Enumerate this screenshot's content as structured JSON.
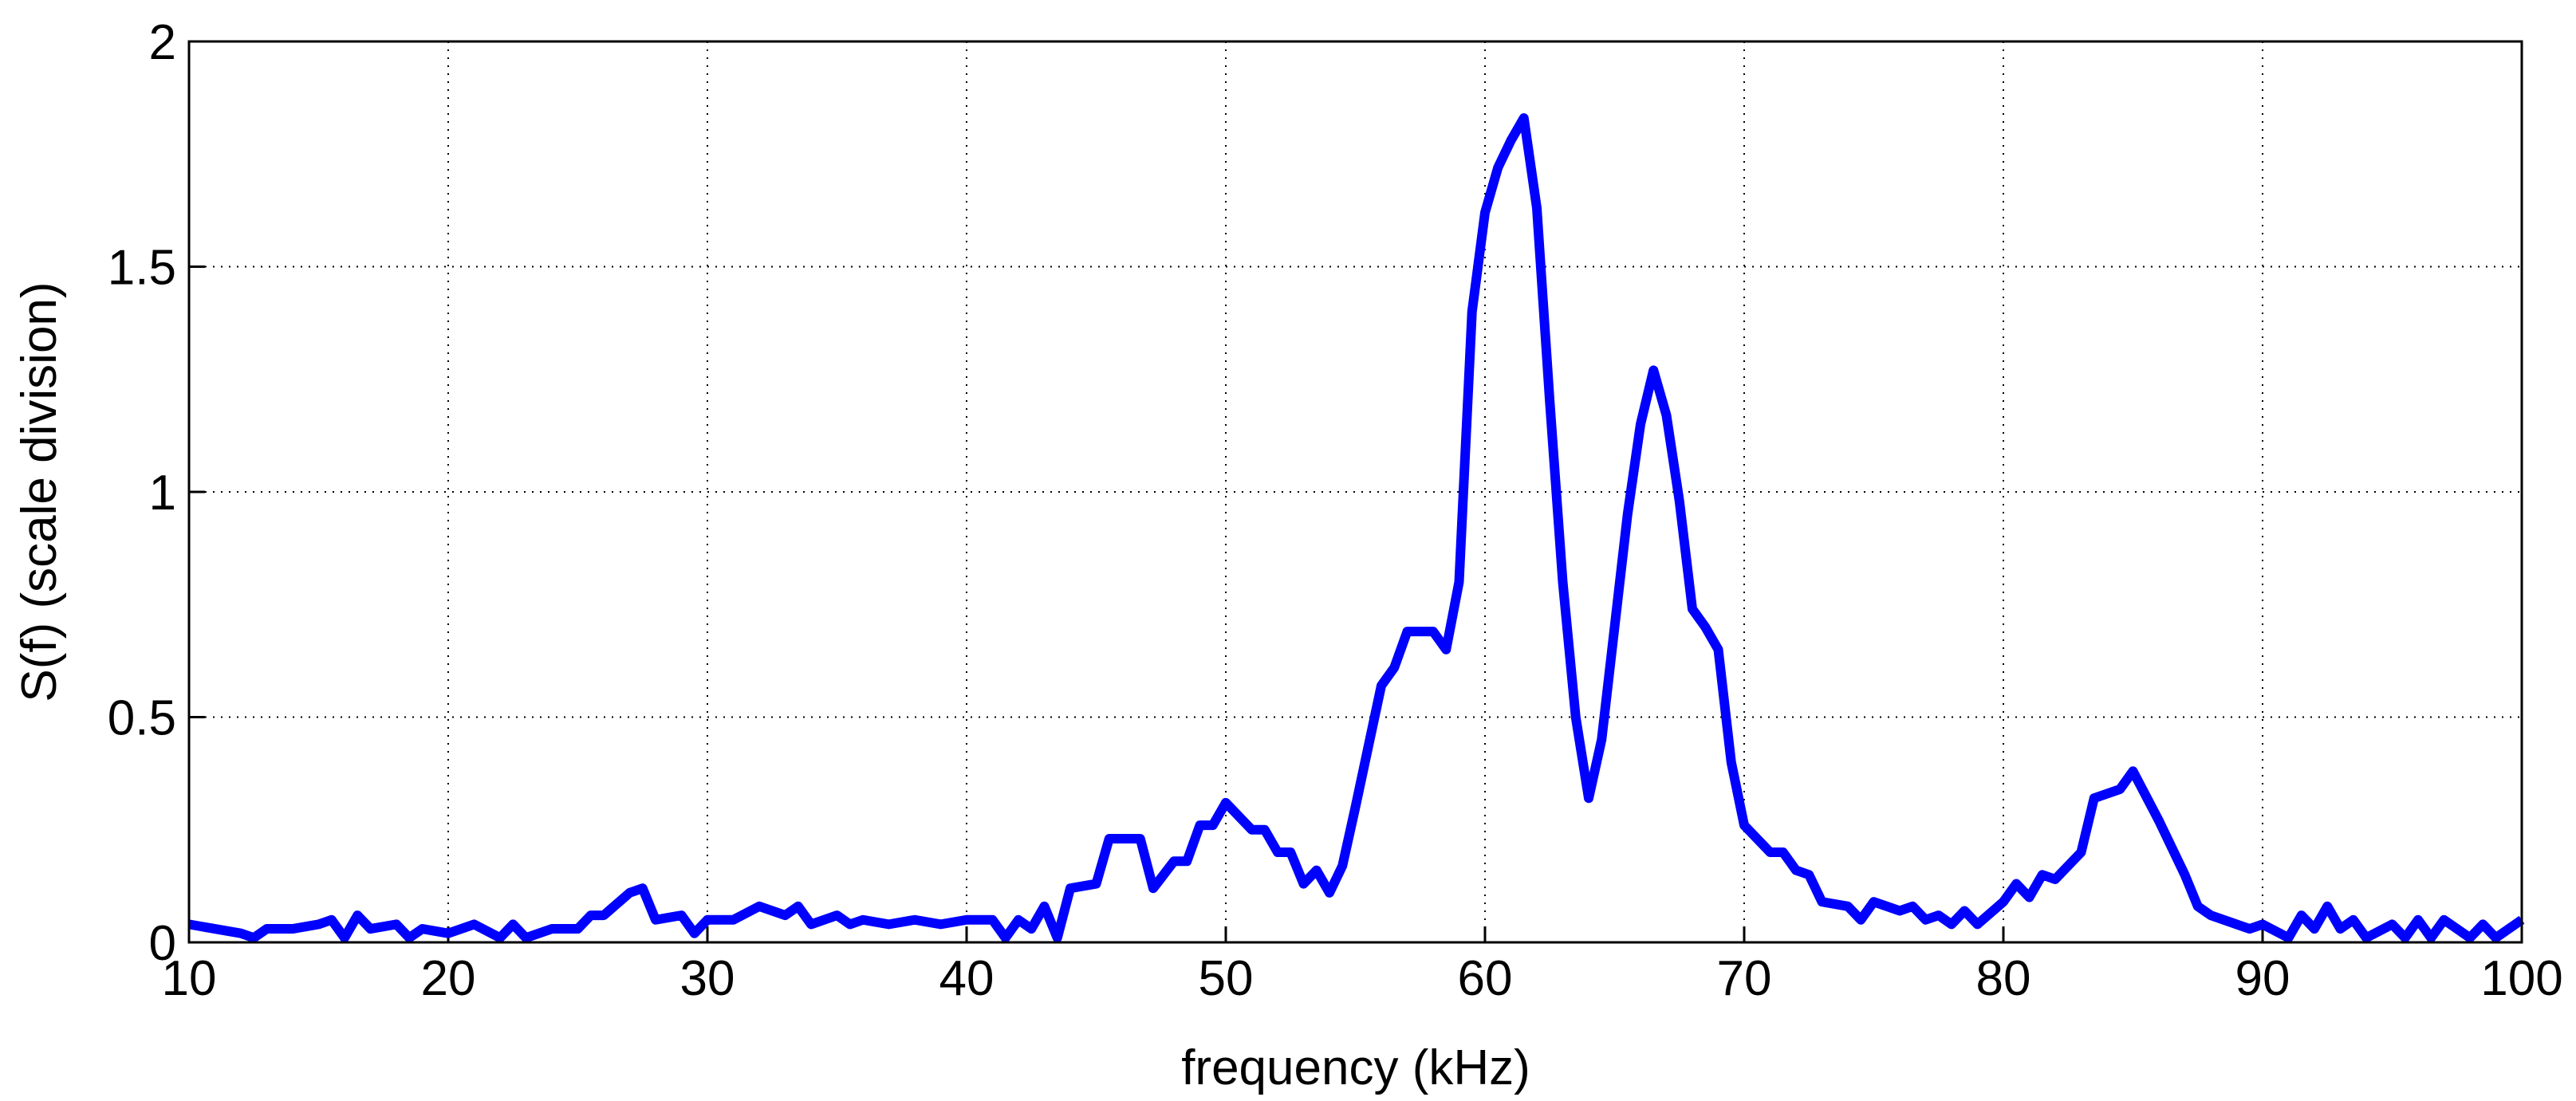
{
  "chart_data": {
    "type": "line",
    "xlabel": "frequency (kHz)",
    "ylabel": "S(f) (scale division)",
    "x": [
      10,
      11,
      12,
      12.5,
      13,
      14,
      15,
      15.5,
      16,
      16.5,
      17,
      18,
      18.5,
      19,
      20,
      21,
      22,
      22.5,
      23,
      24,
      25,
      25.5,
      26,
      27,
      27.5,
      28,
      29,
      29.5,
      30,
      31,
      32,
      33,
      33.5,
      34,
      35,
      35.5,
      36,
      37,
      38,
      39,
      40,
      41,
      41.5,
      42,
      42.5,
      43,
      43.5,
      44,
      45,
      45.5,
      46,
      46.7,
      47.2,
      48,
      48.5,
      49,
      49.5,
      50,
      51,
      51.5,
      52,
      52.5,
      53,
      53.5,
      54,
      54.5,
      55,
      56,
      56.5,
      57,
      58,
      58.5,
      59,
      59.5,
      60,
      60.5,
      61,
      61.5,
      62,
      62.5,
      63,
      63.5,
      64,
      64.5,
      65,
      65.5,
      66,
      66.5,
      67,
      67.5,
      68,
      68.5,
      69,
      69.5,
      70,
      71,
      71.5,
      72,
      72.5,
      73,
      74,
      74.5,
      75,
      76,
      76.5,
      77,
      77.5,
      78,
      78.5,
      79,
      80,
      80.5,
      81,
      81.5,
      82,
      83,
      83.5,
      84,
      84.5,
      85,
      86,
      87,
      87.5,
      88,
      89,
      89.5,
      90,
      91,
      91.5,
      92,
      92.5,
      93,
      93.5,
      94,
      95,
      95.5,
      96,
      96.5,
      97,
      98,
      98.5,
      99,
      100
    ],
    "values": [
      0.04,
      0.03,
      0.02,
      0.01,
      0.03,
      0.03,
      0.04,
      0.05,
      0.01,
      0.06,
      0.03,
      0.04,
      0.01,
      0.03,
      0.02,
      0.04,
      0.01,
      0.04,
      0.01,
      0.03,
      0.03,
      0.06,
      0.06,
      0.11,
      0.12,
      0.05,
      0.06,
      0.02,
      0.05,
      0.05,
      0.08,
      0.06,
      0.08,
      0.04,
      0.06,
      0.04,
      0.05,
      0.04,
      0.05,
      0.04,
      0.05,
      0.05,
      0.01,
      0.05,
      0.03,
      0.08,
      0.01,
      0.12,
      0.13,
      0.23,
      0.23,
      0.23,
      0.12,
      0.18,
      0.18,
      0.26,
      0.26,
      0.31,
      0.25,
      0.25,
      0.2,
      0.2,
      0.13,
      0.16,
      0.11,
      0.17,
      0.3,
      0.57,
      0.61,
      0.69,
      0.69,
      0.65,
      0.8,
      1.4,
      1.62,
      1.72,
      1.78,
      1.83,
      1.63,
      1.2,
      0.8,
      0.5,
      0.32,
      0.45,
      0.7,
      0.95,
      1.15,
      1.27,
      1.17,
      0.98,
      0.74,
      0.7,
      0.65,
      0.4,
      0.26,
      0.2,
      0.2,
      0.16,
      0.15,
      0.09,
      0.08,
      0.05,
      0.09,
      0.07,
      0.08,
      0.05,
      0.06,
      0.04,
      0.07,
      0.04,
      0.09,
      0.13,
      0.1,
      0.15,
      0.14,
      0.2,
      0.32,
      0.33,
      0.34,
      0.38,
      0.27,
      0.15,
      0.08,
      0.06,
      0.04,
      0.03,
      0.04,
      0.01,
      0.06,
      0.03,
      0.08,
      0.03,
      0.05,
      0.01,
      0.04,
      0.01,
      0.05,
      0.01,
      0.05,
      0.01,
      0.04,
      0.01,
      0.05
    ],
    "color": "#0000ff",
    "xlim": [
      10,
      100
    ],
    "xticks": [
      10,
      20,
      30,
      40,
      50,
      60,
      70,
      80,
      90,
      100
    ],
    "ylim": [
      0,
      2
    ],
    "yticks": [
      0,
      0.5,
      1,
      1.5,
      2
    ],
    "grid": true
  }
}
